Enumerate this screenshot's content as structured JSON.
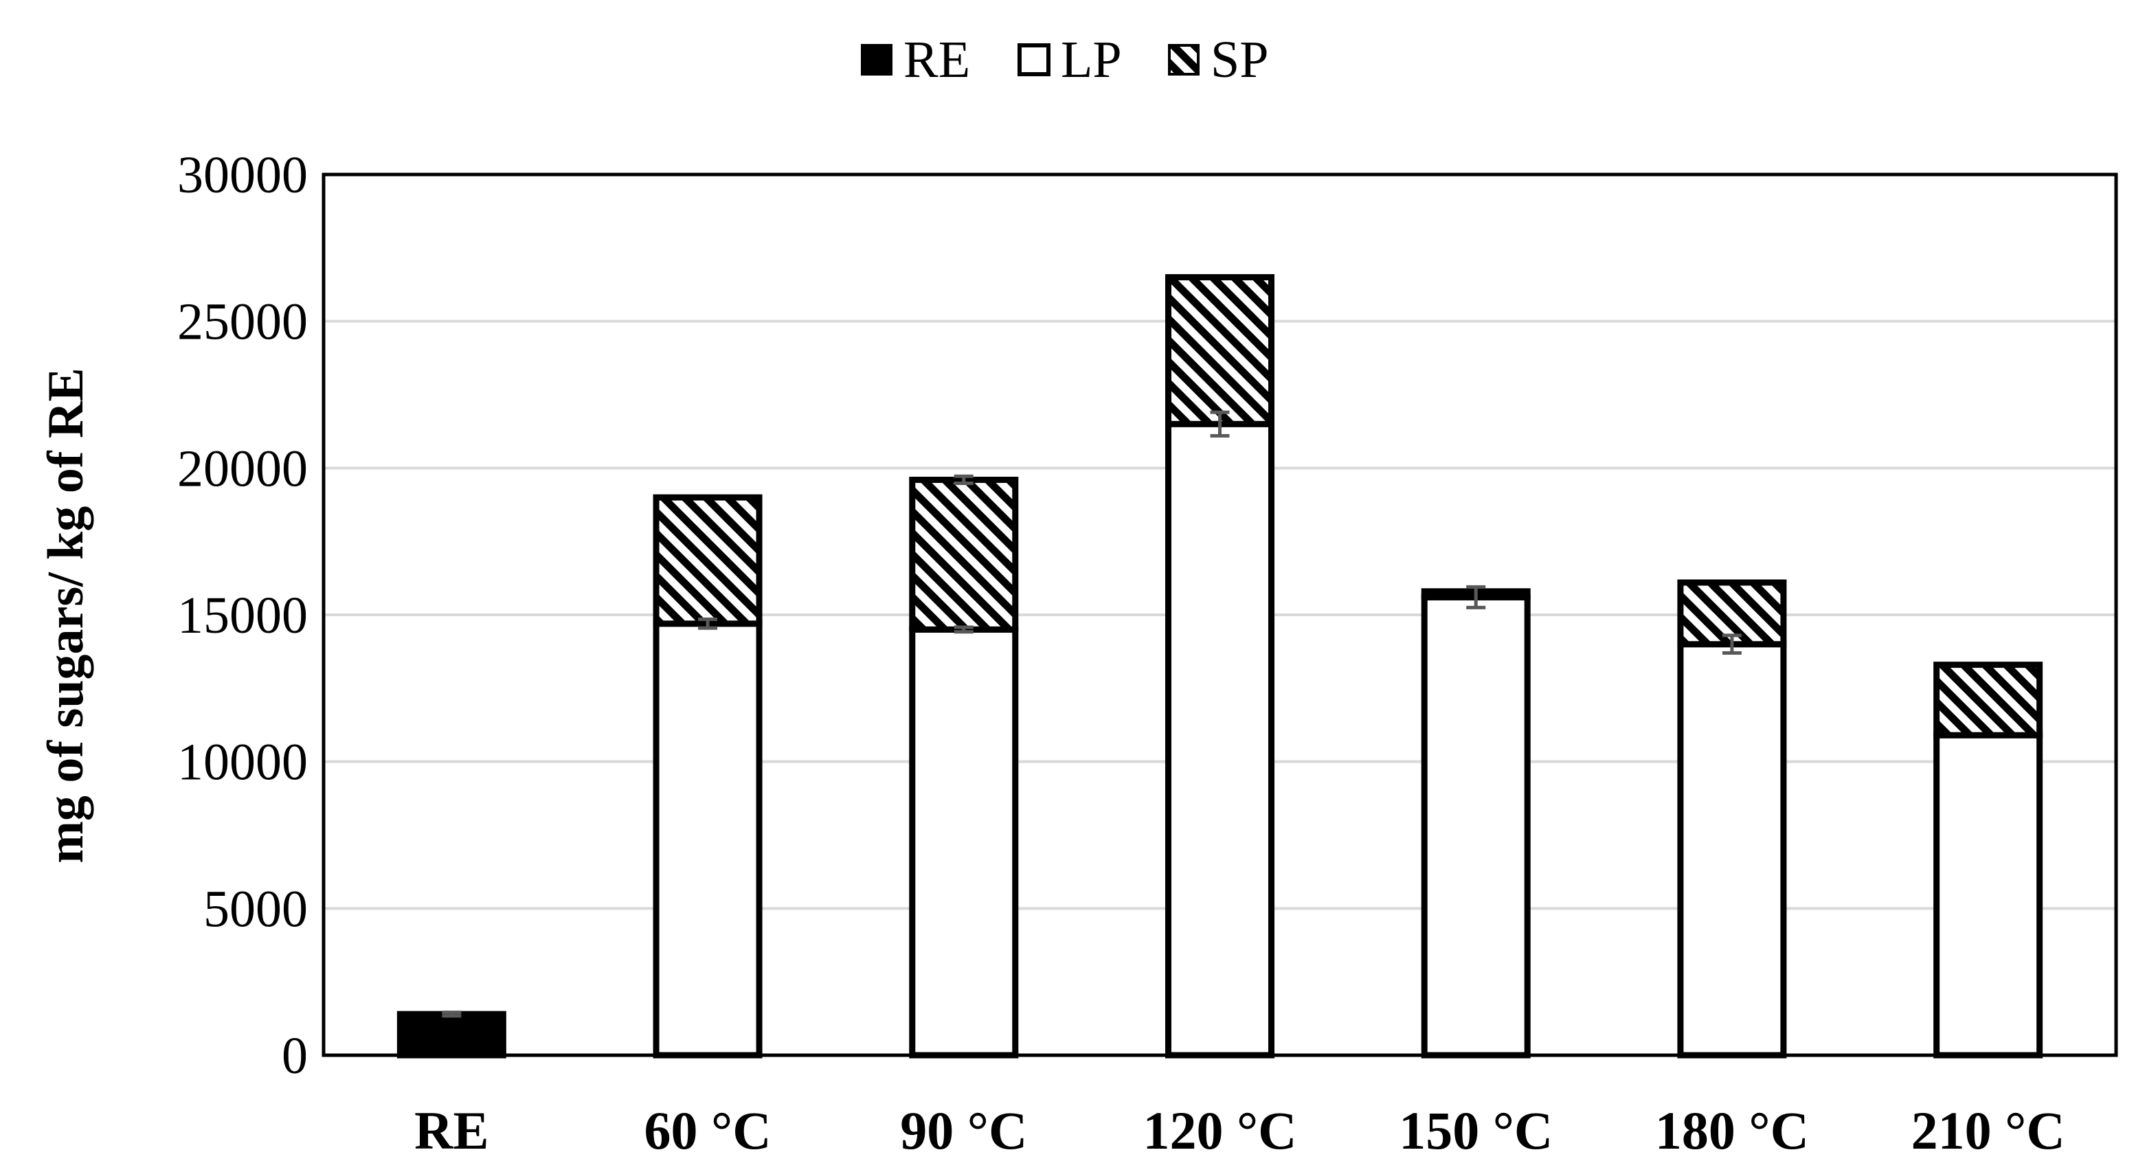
{
  "chart_data": {
    "type": "bar",
    "stacked": true,
    "title": "",
    "xlabel": "",
    "ylabel": "mg of sugars/ kg of RE",
    "ylim": [
      0,
      30000
    ],
    "yticks": [
      0,
      5000,
      10000,
      15000,
      20000,
      25000,
      30000
    ],
    "ytick_labels": [
      "0",
      "5000",
      "10000",
      "15000",
      "20000",
      "25000",
      "30000"
    ],
    "grid": "horizontal",
    "legend_position": "top-center",
    "categories": [
      "RE",
      "60 °C",
      "90 °C",
      "120 °C",
      "150 °C",
      "180 °C",
      "210 °C"
    ],
    "series": [
      {
        "name": "RE",
        "pattern": "solid-black",
        "values": [
          1400,
          0,
          0,
          0,
          0,
          0,
          0
        ],
        "error": [
          60,
          0,
          0,
          0,
          0,
          0,
          0
        ]
      },
      {
        "name": "LP",
        "pattern": "white",
        "values": [
          0,
          14700,
          14500,
          21500,
          15600,
          14000,
          10900
        ],
        "error": [
          0,
          150,
          80,
          400,
          350,
          300,
          0
        ]
      },
      {
        "name": "SP",
        "pattern": "diagonal-hatch",
        "values": [
          0,
          4300,
          5100,
          5000,
          200,
          2100,
          2400
        ],
        "error": [
          0,
          0,
          120,
          0,
          0,
          0,
          0
        ]
      }
    ],
    "colors": {
      "re_fill": "#000000",
      "lp_fill": "#ffffff",
      "outline": "#000000",
      "grid": "#d9d9d9",
      "error_bar": "#595959"
    }
  }
}
